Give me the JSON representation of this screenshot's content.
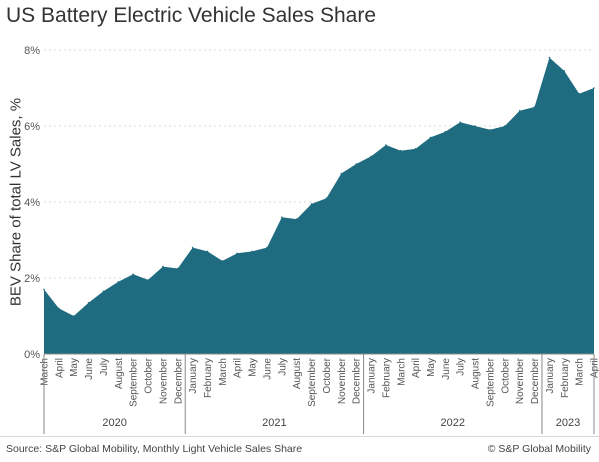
{
  "colors": {
    "area_fill": "#1f6b80",
    "grid": "#d9d9d9",
    "axis": "#888888",
    "text": "#333333"
  },
  "chart_data": {
    "type": "area",
    "title": "US Battery Electric Vehicle Sales Share",
    "ylabel": "BEV Share of total LV Sales, %",
    "xlabel": "",
    "ylim": [
      0,
      8
    ],
    "yticks": [
      0,
      2,
      4,
      6,
      8
    ],
    "ytick_labels": [
      "0%",
      "2%",
      "4%",
      "6%",
      "8%"
    ],
    "grid": "horizontal dotted",
    "x": [
      "March",
      "April",
      "May",
      "June",
      "July",
      "August",
      "September",
      "October",
      "November",
      "December",
      "January",
      "February",
      "March",
      "April",
      "May",
      "June",
      "July",
      "August",
      "September",
      "October",
      "November",
      "December",
      "January",
      "February",
      "March",
      "April",
      "May",
      "June",
      "July",
      "August",
      "September",
      "October",
      "November",
      "December",
      "January",
      "February",
      "March",
      "April"
    ],
    "values": [
      1.7,
      1.2,
      1.0,
      1.35,
      1.65,
      1.9,
      2.1,
      1.95,
      2.3,
      2.25,
      2.8,
      2.7,
      2.45,
      2.65,
      2.7,
      2.8,
      3.6,
      3.55,
      3.95,
      4.1,
      4.75,
      5.0,
      5.2,
      5.5,
      5.35,
      5.4,
      5.7,
      5.85,
      6.1,
      6.0,
      5.9,
      6.0,
      6.4,
      6.5,
      7.8,
      7.45,
      6.85,
      7.0
    ],
    "year_groups": [
      {
        "label": "2020",
        "count": 10
      },
      {
        "label": "2021",
        "count": 12
      },
      {
        "label": "2022",
        "count": 12
      },
      {
        "label": "2023",
        "count": 4
      }
    ]
  },
  "footer": {
    "source": "Source: S&P Global Mobility, Monthly Light Vehicle Sales Share",
    "copyright": "© S&P Global Mobility"
  }
}
